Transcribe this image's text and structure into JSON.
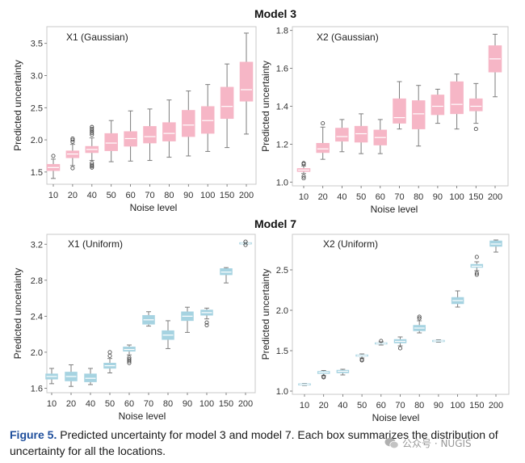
{
  "figure": {
    "model_titles": [
      "Model 3",
      "Model 7"
    ]
  },
  "chart_data": [
    {
      "type": "box",
      "title": "X1 (Gaussian)",
      "xlabel": "Noise level",
      "ylabel": "Predicted uncertainty",
      "categories": [
        "10",
        "20",
        "40",
        "50",
        "60",
        "70",
        "80",
        "90",
        "100",
        "150",
        "200"
      ],
      "ylim": [
        1.31,
        3.76
      ],
      "yticks": [
        "1.5",
        "2.0",
        "2.5",
        "3.0",
        "3.5"
      ],
      "box_color": "#f6b6c6",
      "median_color": "#ffffff",
      "whisker_color": "#7d7d7d",
      "outlier_color": "#3a3a3a",
      "frame_color": "#c9c9c9",
      "boxes": [
        {
          "low": 1.4,
          "q1": 1.52,
          "median": 1.57,
          "q3": 1.62,
          "high": 1.7,
          "outliers": [
            1.75
          ]
        },
        {
          "low": 1.6,
          "q1": 1.72,
          "median": 1.78,
          "q3": 1.83,
          "high": 1.93,
          "outliers": [
            1.97,
            2.0,
            2.02,
            1.56
          ]
        },
        {
          "low": 1.68,
          "q1": 1.8,
          "median": 1.85,
          "q3": 1.9,
          "high": 2.03,
          "outliers": [
            2.08,
            2.11,
            2.14,
            2.17,
            2.2,
            1.64,
            1.61,
            1.59,
            1.57
          ]
        },
        {
          "low": 1.66,
          "q1": 1.83,
          "median": 1.95,
          "q3": 2.1,
          "high": 2.3,
          "outliers": []
        },
        {
          "low": 1.67,
          "q1": 1.9,
          "median": 2.02,
          "q3": 2.13,
          "high": 2.45,
          "outliers": []
        },
        {
          "low": 1.68,
          "q1": 1.95,
          "median": 2.05,
          "q3": 2.21,
          "high": 2.48,
          "outliers": []
        },
        {
          "low": 1.73,
          "q1": 1.98,
          "median": 2.1,
          "q3": 2.27,
          "high": 2.62,
          "outliers": []
        },
        {
          "low": 1.75,
          "q1": 2.05,
          "median": 2.23,
          "q3": 2.46,
          "high": 2.76,
          "outliers": []
        },
        {
          "low": 1.82,
          "q1": 2.1,
          "median": 2.3,
          "q3": 2.52,
          "high": 2.86,
          "outliers": []
        },
        {
          "low": 1.88,
          "q1": 2.33,
          "median": 2.52,
          "q3": 2.82,
          "high": 3.18,
          "outliers": []
        },
        {
          "low": 2.09,
          "q1": 2.6,
          "median": 2.78,
          "q3": 3.21,
          "high": 3.66,
          "outliers": []
        }
      ]
    },
    {
      "type": "box",
      "title": "X2 (Gaussian)",
      "xlabel": "Noise level",
      "ylabel": "Predicted uncertainty",
      "categories": [
        "10",
        "20",
        "40",
        "50",
        "60",
        "70",
        "80",
        "90",
        "100",
        "150",
        "200"
      ],
      "ylim": [
        0.98,
        1.82
      ],
      "yticks": [
        "1.0",
        "1.2",
        "1.4",
        "1.6",
        "1.8"
      ],
      "box_color": "#f6b6c6",
      "median_color": "#ffffff",
      "whisker_color": "#7d7d7d",
      "outlier_color": "#3a3a3a",
      "frame_color": "#c9c9c9",
      "boxes": [
        {
          "low": 1.045,
          "q1": 1.055,
          "median": 1.063,
          "q3": 1.072,
          "high": 1.085,
          "outliers": [
            1.1,
            1.095,
            1.03,
            1.02
          ]
        },
        {
          "low": 1.12,
          "q1": 1.155,
          "median": 1.175,
          "q3": 1.205,
          "high": 1.29,
          "outliers": [
            1.31
          ]
        },
        {
          "low": 1.16,
          "q1": 1.215,
          "median": 1.24,
          "q3": 1.285,
          "high": 1.33,
          "outliers": []
        },
        {
          "low": 1.15,
          "q1": 1.21,
          "median": 1.255,
          "q3": 1.295,
          "high": 1.36,
          "outliers": []
        },
        {
          "low": 1.15,
          "q1": 1.195,
          "median": 1.235,
          "q3": 1.275,
          "high": 1.33,
          "outliers": []
        },
        {
          "low": 1.28,
          "q1": 1.31,
          "median": 1.34,
          "q3": 1.44,
          "high": 1.53,
          "outliers": []
        },
        {
          "low": 1.19,
          "q1": 1.28,
          "median": 1.36,
          "q3": 1.43,
          "high": 1.51,
          "outliers": []
        },
        {
          "low": 1.31,
          "q1": 1.355,
          "median": 1.4,
          "q3": 1.46,
          "high": 1.49,
          "outliers": []
        },
        {
          "low": 1.28,
          "q1": 1.36,
          "median": 1.41,
          "q3": 1.53,
          "high": 1.57,
          "outliers": []
        },
        {
          "low": 1.31,
          "q1": 1.375,
          "median": 1.4,
          "q3": 1.44,
          "high": 1.52,
          "outliers": [
            1.28
          ]
        },
        {
          "low": 1.45,
          "q1": 1.58,
          "median": 1.65,
          "q3": 1.72,
          "high": 1.78,
          "outliers": []
        }
      ]
    },
    {
      "type": "box",
      "title": "X1 (Uniform)",
      "xlabel": "Noise level",
      "ylabel": "Predicted uncertainty",
      "categories": [
        "10",
        "20",
        "40",
        "50",
        "60",
        "70",
        "80",
        "90",
        "100",
        "150",
        "200"
      ],
      "ylim": [
        1.55,
        3.31
      ],
      "yticks": [
        "1.6",
        "2.0",
        "2.4",
        "2.8",
        "3.2"
      ],
      "box_color": "#a6d3e1",
      "median_color": "#ffffff",
      "whisker_color": "#7d7d7d",
      "outlier_color": "#3a3a3a",
      "frame_color": "#c9c9c9",
      "boxes": [
        {
          "low": 1.65,
          "q1": 1.7,
          "median": 1.73,
          "q3": 1.76,
          "high": 1.82,
          "outliers": []
        },
        {
          "low": 1.62,
          "q1": 1.68,
          "median": 1.73,
          "q3": 1.78,
          "high": 1.86,
          "outliers": []
        },
        {
          "low": 1.64,
          "q1": 1.67,
          "median": 1.71,
          "q3": 1.76,
          "high": 1.82,
          "outliers": []
        },
        {
          "low": 1.77,
          "q1": 1.82,
          "median": 1.85,
          "q3": 1.88,
          "high": 1.93,
          "outliers": [
            1.96,
            2.0
          ]
        },
        {
          "low": 1.97,
          "q1": 2.01,
          "median": 2.03,
          "q3": 2.06,
          "high": 2.08,
          "outliers": [
            1.94,
            1.92,
            1.9,
            1.88
          ]
        },
        {
          "low": 2.29,
          "q1": 2.31,
          "median": 2.36,
          "q3": 2.41,
          "high": 2.45,
          "outliers": []
        },
        {
          "low": 2.04,
          "q1": 2.14,
          "median": 2.19,
          "q3": 2.24,
          "high": 2.35,
          "outliers": []
        },
        {
          "low": 2.22,
          "q1": 2.35,
          "median": 2.4,
          "q3": 2.45,
          "high": 2.5,
          "outliers": []
        },
        {
          "low": 2.37,
          "q1": 2.41,
          "median": 2.44,
          "q3": 2.47,
          "high": 2.49,
          "outliers": [
            2.33,
            2.3
          ]
        },
        {
          "low": 2.77,
          "q1": 2.86,
          "median": 2.89,
          "q3": 2.93,
          "high": 2.94,
          "outliers": []
        },
        {
          "low": 3.2,
          "q1": 3.205,
          "median": 3.21,
          "q3": 3.215,
          "high": 3.22,
          "outliers": [
            3.228,
            3.192
          ]
        }
      ]
    },
    {
      "type": "box",
      "title": "X2 (Uniform)",
      "xlabel": "Noise level",
      "ylabel": "Predicted uncertainty",
      "categories": [
        "10",
        "20",
        "40",
        "50",
        "60",
        "70",
        "80",
        "90",
        "100",
        "150",
        "200"
      ],
      "ylim": [
        0.96,
        2.94
      ],
      "yticks": [
        "1.0",
        "1.5",
        "2.0",
        "2.5"
      ],
      "box_color": "#a6d3e1",
      "median_color": "#ffffff",
      "whisker_color": "#7d7d7d",
      "outlier_color": "#3a3a3a",
      "frame_color": "#c9c9c9",
      "boxes": [
        {
          "low": 1.07,
          "q1": 1.078,
          "median": 1.083,
          "q3": 1.088,
          "high": 1.095,
          "outliers": []
        },
        {
          "low": 1.19,
          "q1": 1.215,
          "median": 1.23,
          "q3": 1.245,
          "high": 1.255,
          "outliers": [
            1.18,
            1.17
          ]
        },
        {
          "low": 1.2,
          "q1": 1.225,
          "median": 1.245,
          "q3": 1.26,
          "high": 1.27,
          "outliers": []
        },
        {
          "low": 1.41,
          "q1": 1.43,
          "median": 1.44,
          "q3": 1.45,
          "high": 1.46,
          "outliers": [
            1.39,
            1.38
          ]
        },
        {
          "low": 1.57,
          "q1": 1.58,
          "median": 1.59,
          "q3": 1.6,
          "high": 1.61,
          "outliers": [
            1.62
          ]
        },
        {
          "low": 1.56,
          "q1": 1.595,
          "median": 1.615,
          "q3": 1.64,
          "high": 1.67,
          "outliers": [
            1.53
          ]
        },
        {
          "low": 1.72,
          "q1": 1.745,
          "median": 1.78,
          "q3": 1.815,
          "high": 1.87,
          "outliers": [
            1.9,
            1.92
          ]
        },
        {
          "low": 1.605,
          "q1": 1.615,
          "median": 1.62,
          "q3": 1.625,
          "high": 1.635,
          "outliers": []
        },
        {
          "low": 2.04,
          "q1": 2.08,
          "median": 2.12,
          "q3": 2.16,
          "high": 2.24,
          "outliers": []
        },
        {
          "low": 2.49,
          "q1": 2.53,
          "median": 2.545,
          "q3": 2.57,
          "high": 2.6,
          "outliers": [
            2.66,
            2.46,
            2.44
          ]
        },
        {
          "low": 2.72,
          "q1": 2.79,
          "median": 2.82,
          "q3": 2.86,
          "high": 2.87,
          "outliers": []
        }
      ]
    }
  ],
  "caption": {
    "label": "Figure 5.",
    "text": "Predicted uncertainty for model 3 and model 7. Each box summarizes the distribution of uncertainty for all the locations.",
    "label_color": "#1f4f9c"
  },
  "watermark": {
    "text": "公众号 · NUGIS",
    "icon": "wechat-icon"
  }
}
